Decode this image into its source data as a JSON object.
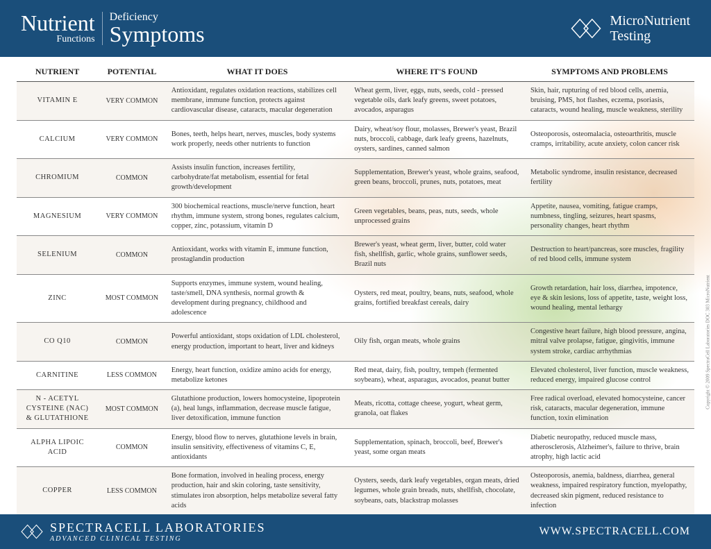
{
  "header": {
    "title_nutrient": "Nutrient",
    "title_functions": "Functions",
    "title_deficiency": "Deficiency",
    "title_symptoms": "Symptoms",
    "brand_line1": "MicroNutrient",
    "brand_line2": "Testing"
  },
  "columns": {
    "nutrient": "NUTRIENT",
    "potential": "POTENTIAL",
    "what": "WHAT IT DOES",
    "where": "WHERE IT'S FOUND",
    "symptoms": "SYMPTOMS AND PROBLEMS"
  },
  "col_widths": {
    "nutrient": "12%",
    "potential": "10%",
    "what": "27%",
    "where": "26%",
    "symptoms": "25%"
  },
  "rows": [
    {
      "nutrient": "VITAMIN  E",
      "potential": "VERY COMMON",
      "what": "Antioxidant, regulates oxidation reactions, stabilizes cell membrane, immune function, protects against cardiovascular disease, cataracts, macular degeneration",
      "where": "Wheat germ, liver, eggs, nuts, seeds, cold - pressed  vegetable oils, dark leafy greens, sweet potatoes, avocados, asparagus",
      "symptoms": "Skin, hair, rupturing of red blood cells, anemia, bruising, PMS, hot flashes, eczema, psoriasis, cataracts, wound healing, muscle weakness, sterility"
    },
    {
      "nutrient": "CALCIUM",
      "potential": "VERY COMMON",
      "what": "Bones, teeth, helps heart, nerves, muscles, body systems work properly, needs other nutrients to function",
      "where": "Dairy, wheat/soy flour, molasses, Brewer's yeast, Brazil nuts, broccoli, cabbage, dark leafy greens, hazelnuts, oysters, sardines, canned salmon",
      "symptoms": "Osteoporosis, osteomalacia, osteoarthritis, muscle cramps, irritability, acute anxiety, colon cancer risk"
    },
    {
      "nutrient": "CHROMIUM",
      "potential": "COMMON",
      "what": "Assists insulin function, increases fertility, carbohydrate/fat metabolism, essential for fetal growth/development",
      "where": "Supplementation, Brewer's yeast, whole grains, seafood, green beans, broccoli, prunes, nuts, potatoes, meat",
      "symptoms": "Metabolic syndrome, insulin resistance, decreased fertility"
    },
    {
      "nutrient": "MAGNESIUM",
      "potential": "VERY COMMON",
      "what": "300 biochemical reactions, muscle/nerve function, heart rhythm, immune system, strong bones, regulates calcium, copper, zinc, potassium, vitamin D",
      "where": "Green vegetables, beans, peas, nuts, seeds, whole unprocessed grains",
      "symptoms": "Appetite, nausea, vomiting, fatigue cramps, numbness, tingling, seizures, heart spasms, personality changes, heart rhythm"
    },
    {
      "nutrient": "SELENIUM",
      "potential": "COMMON",
      "what": "Antioxidant, works with vitamin E, immune function, prostaglandin production",
      "where": "Brewer's yeast, wheat germ, liver, butter, cold water fish, shellfish, garlic, whole grains, sunflower seeds, Brazil nuts",
      "symptoms": "Destruction to heart/pancreas, sore muscles, fragility of red blood cells, immune system"
    },
    {
      "nutrient": "ZINC",
      "potential": "MOST COMMON",
      "what": "Supports enzymes, immune system, wound healing, taste/smell, DNA synthesis, normal growth & development during pregnancy, childhood and adolescence",
      "where": "Oysters, red meat, poultry, beans, nuts, seafood, whole grains, fortified breakfast cereals, dairy",
      "symptoms": "Growth retardation, hair loss, diarrhea, impotence, eye & skin lesions, loss of appetite, taste, weight loss, wound healing, mental lethargy"
    },
    {
      "nutrient": "CO Q10",
      "potential": "COMMON",
      "what": "Powerful antioxidant, stops oxidation of LDL cholesterol, energy production, important to heart, liver and kidneys",
      "where": "Oily fish, organ meats, whole grains",
      "symptoms": "Congestive heart failure, high blood pressure, angina, mitral valve prolapse, fatigue, gingivitis, immune system stroke, cardiac arrhythmias"
    },
    {
      "nutrient": "CARNITINE",
      "potential": "LESS COMMON",
      "what": "Energy, heart function, oxidize amino acids for energy, metabolize ketones",
      "where": "Red meat, dairy, fish, poultry, tempeh (fermented soybeans), wheat, asparagus, avocados, peanut butter",
      "symptoms": "Elevated cholesterol, liver function, muscle weakness, reduced energy, impaired glucose control"
    },
    {
      "nutrient": "N - ACETYL CYSTEINE (NAC) & GLUTATHIONE",
      "potential": "MOST COMMON",
      "what": "Glutathione production, lowers homocysteine, lipoprotein (a), heal lungs, inflammation, decrease muscle fatigue, liver detoxification, immune function",
      "where": "Meats, ricotta, cottage cheese, yogurt, wheat germ, granola, oat flakes",
      "symptoms": "Free radical overload, elevated homocysteine, cancer risk, cataracts, macular degeneration, immune function, toxin elimination"
    },
    {
      "nutrient": "ALPHA LIPOIC ACID",
      "potential": "COMMON",
      "what": "Energy, blood flow to nerves, glutathione levels in brain, insulin sensitivity, effectiveness of vitamins C, E, antioxidants",
      "where": "Supplementation, spinach, broccoli, beef, Brewer's yeast, some organ meats",
      "symptoms": "Diabetic neuropathy, reduced muscle mass, atherosclerosis, Alzheimer's, failure to thrive, brain atrophy, high lactic acid"
    },
    {
      "nutrient": "COPPER",
      "potential": "LESS COMMON",
      "what": "Bone formation, involved in healing process, energy production, hair and skin coloring, taste sensitivity, stimulates iron absorption, helps metabolize several fatty acids",
      "where": "Oysters, seeds, dark leafy vegetables, organ meats, dried legumes, whole grain breads, nuts, shellfish, chocolate, soybeans, oats, blackstrap molasses",
      "symptoms": "Osteoporosis, anemia, baldness, diarrhea, general weakness, impaired respiratory function, myelopathy, decreased skin pigment, reduced resistance to infection"
    }
  ],
  "footer": {
    "brand": "SPECTRACELL LABORATORIES",
    "tagline": "ADVANCED CLINICAL TESTING",
    "url": "WWW.SPECTRACELL.COM"
  },
  "copyright": "Copyright © 2009 SpectraCell Laboratories DOC 303 MicroNutrient",
  "colors": {
    "header_bg": "#1a4e7a",
    "row_border": "#888888",
    "text": "#333333"
  }
}
